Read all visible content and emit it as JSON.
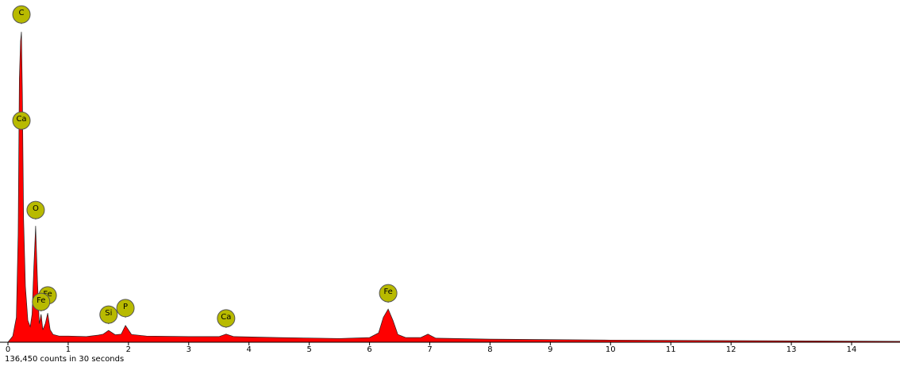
{
  "chart_data": {
    "type": "spectrum",
    "x": [
      0,
      0.08,
      0.14,
      0.17,
      0.19,
      0.21,
      0.224,
      0.24,
      0.26,
      0.29,
      0.33,
      0.37,
      0.4,
      0.43,
      0.46,
      0.49,
      0.52,
      0.55,
      0.58,
      0.62,
      0.66,
      0.7,
      0.75,
      0.85,
      1.0,
      1.3,
      1.5,
      1.58,
      1.67,
      1.78,
      1.88,
      1.95,
      2.05,
      2.3,
      3.0,
      3.5,
      3.62,
      3.75,
      4.5,
      5.5,
      6.0,
      6.15,
      6.23,
      6.31,
      6.39,
      6.47,
      6.6,
      6.85,
      6.97,
      7.1,
      8.0,
      10.0,
      12.0,
      14.83
    ],
    "values": [
      0,
      2,
      8,
      35,
      85,
      97,
      100,
      80,
      40,
      18,
      7,
      5,
      9,
      24,
      37.5,
      20,
      6,
      9,
      4,
      6,
      9.4,
      4,
      2.5,
      2,
      2,
      1.8,
      2.3,
      2.6,
      3.8,
      2.4,
      2.6,
      5.4,
      2.5,
      2,
      1.8,
      1.8,
      2.6,
      1.8,
      1.5,
      1.2,
      1.5,
      3,
      8,
      10.7,
      7,
      2.5,
      1.5,
      1.5,
      2.6,
      1.3,
      1,
      0.7,
      0.5,
      0.3
    ],
    "color": "#ff0000",
    "xlim": [
      0,
      14.83
    ],
    "ylim": [
      0,
      110
    ],
    "xticks": [
      0,
      1,
      2,
      3,
      4,
      5,
      6,
      7,
      8,
      9,
      10,
      11,
      12,
      13,
      14
    ],
    "markers": [
      {
        "label": "C",
        "x": 0.224,
        "y": 105.6
      },
      {
        "label": "Ca",
        "x": 0.224,
        "y": 71.4
      },
      {
        "label": "O",
        "x": 0.46,
        "y": 42.6
      },
      {
        "label": "Fe",
        "x": 0.66,
        "y": 15.1
      },
      {
        "label": "Fe",
        "x": 0.55,
        "y": 13.0
      },
      {
        "label": "Si",
        "x": 1.67,
        "y": 8.9
      },
      {
        "label": "P",
        "x": 1.95,
        "y": 11.0
      },
      {
        "label": "Ca",
        "x": 3.62,
        "y": 7.7
      },
      {
        "label": "Fe",
        "x": 6.31,
        "y": 15.8
      }
    ],
    "marker_color": "#b8ba00",
    "footer": "136,450 counts in 30 seconds"
  }
}
